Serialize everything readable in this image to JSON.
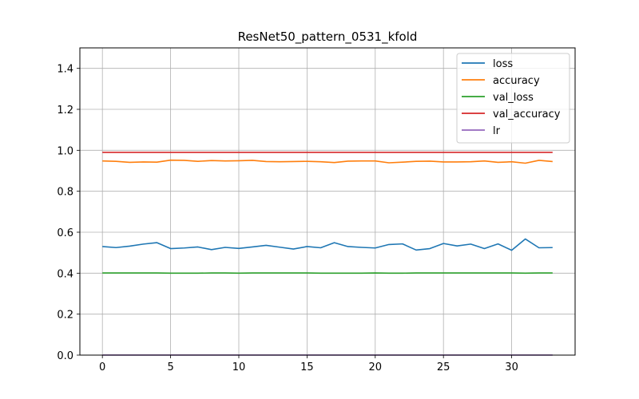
{
  "chart_data": {
    "type": "line",
    "title": "ResNet50_pattern_0531_kfold",
    "xlabel": "",
    "ylabel": "",
    "xlim": [
      -1.65,
      34.65
    ],
    "ylim": [
      0,
      1.5
    ],
    "xticks": [
      0,
      5,
      10,
      15,
      20,
      25,
      30
    ],
    "yticks": [
      0.0,
      0.2,
      0.4,
      0.6,
      0.8,
      1.0,
      1.2,
      1.4
    ],
    "grid": true,
    "legend_position": "top-right",
    "x": [
      0,
      1,
      2,
      3,
      4,
      5,
      6,
      7,
      8,
      9,
      10,
      11,
      12,
      13,
      14,
      15,
      16,
      17,
      18,
      19,
      20,
      21,
      22,
      23,
      24,
      25,
      26,
      27,
      28,
      29,
      30,
      31,
      32,
      33
    ],
    "series": [
      {
        "name": "loss",
        "color": "#1f77b4",
        "values": [
          0.53,
          0.525,
          0.532,
          0.542,
          0.549,
          0.52,
          0.523,
          0.528,
          0.515,
          0.526,
          0.521,
          0.528,
          0.536,
          0.527,
          0.518,
          0.53,
          0.524,
          0.549,
          0.53,
          0.526,
          0.523,
          0.54,
          0.543,
          0.513,
          0.52,
          0.545,
          0.533,
          0.542,
          0.52,
          0.543,
          0.512,
          0.567,
          0.524,
          0.525
        ]
      },
      {
        "name": "accuracy",
        "color": "#ff7f0e",
        "values": [
          0.948,
          0.946,
          0.941,
          0.943,
          0.942,
          0.952,
          0.951,
          0.946,
          0.95,
          0.948,
          0.949,
          0.951,
          0.945,
          0.944,
          0.945,
          0.946,
          0.944,
          0.94,
          0.947,
          0.948,
          0.948,
          0.939,
          0.942,
          0.946,
          0.947,
          0.943,
          0.943,
          0.944,
          0.948,
          0.941,
          0.944,
          0.937,
          0.951,
          0.945
        ]
      },
      {
        "name": "val_loss",
        "color": "#2ca02c",
        "values": [
          0.401,
          0.401,
          0.401,
          0.401,
          0.401,
          0.4,
          0.4,
          0.4,
          0.401,
          0.401,
          0.4,
          0.401,
          0.401,
          0.401,
          0.401,
          0.401,
          0.4,
          0.4,
          0.4,
          0.4,
          0.401,
          0.4,
          0.4,
          0.401,
          0.401,
          0.401,
          0.401,
          0.401,
          0.401,
          0.401,
          0.401,
          0.4,
          0.401,
          0.401
        ]
      },
      {
        "name": "val_accuracy",
        "color": "#d62728",
        "values": [
          0.99,
          0.99,
          0.99,
          0.99,
          0.99,
          0.99,
          0.99,
          0.99,
          0.99,
          0.99,
          0.99,
          0.99,
          0.99,
          0.99,
          0.99,
          0.99,
          0.99,
          0.99,
          0.99,
          0.99,
          0.99,
          0.99,
          0.99,
          0.99,
          0.99,
          0.99,
          0.99,
          0.99,
          0.99,
          0.99,
          0.99,
          0.99,
          0.99,
          0.99
        ]
      },
      {
        "name": "lr",
        "color": "#9467bd",
        "values": [
          0.0001,
          0.0001,
          0.0001,
          0.0001,
          0.0001,
          0.0001,
          0.0001,
          0.0001,
          0.0001,
          0.0001,
          0.0001,
          0.0001,
          0.0001,
          0.0001,
          0.0001,
          0.0001,
          0.0001,
          0.0001,
          0.0001,
          0.0001,
          0.0001,
          0.0001,
          0.0001,
          0.0001,
          0.0001,
          0.0001,
          0.0001,
          0.0001,
          0.0001,
          0.0001,
          0.0001,
          0.0001,
          0.0001,
          0.0001
        ]
      }
    ]
  }
}
